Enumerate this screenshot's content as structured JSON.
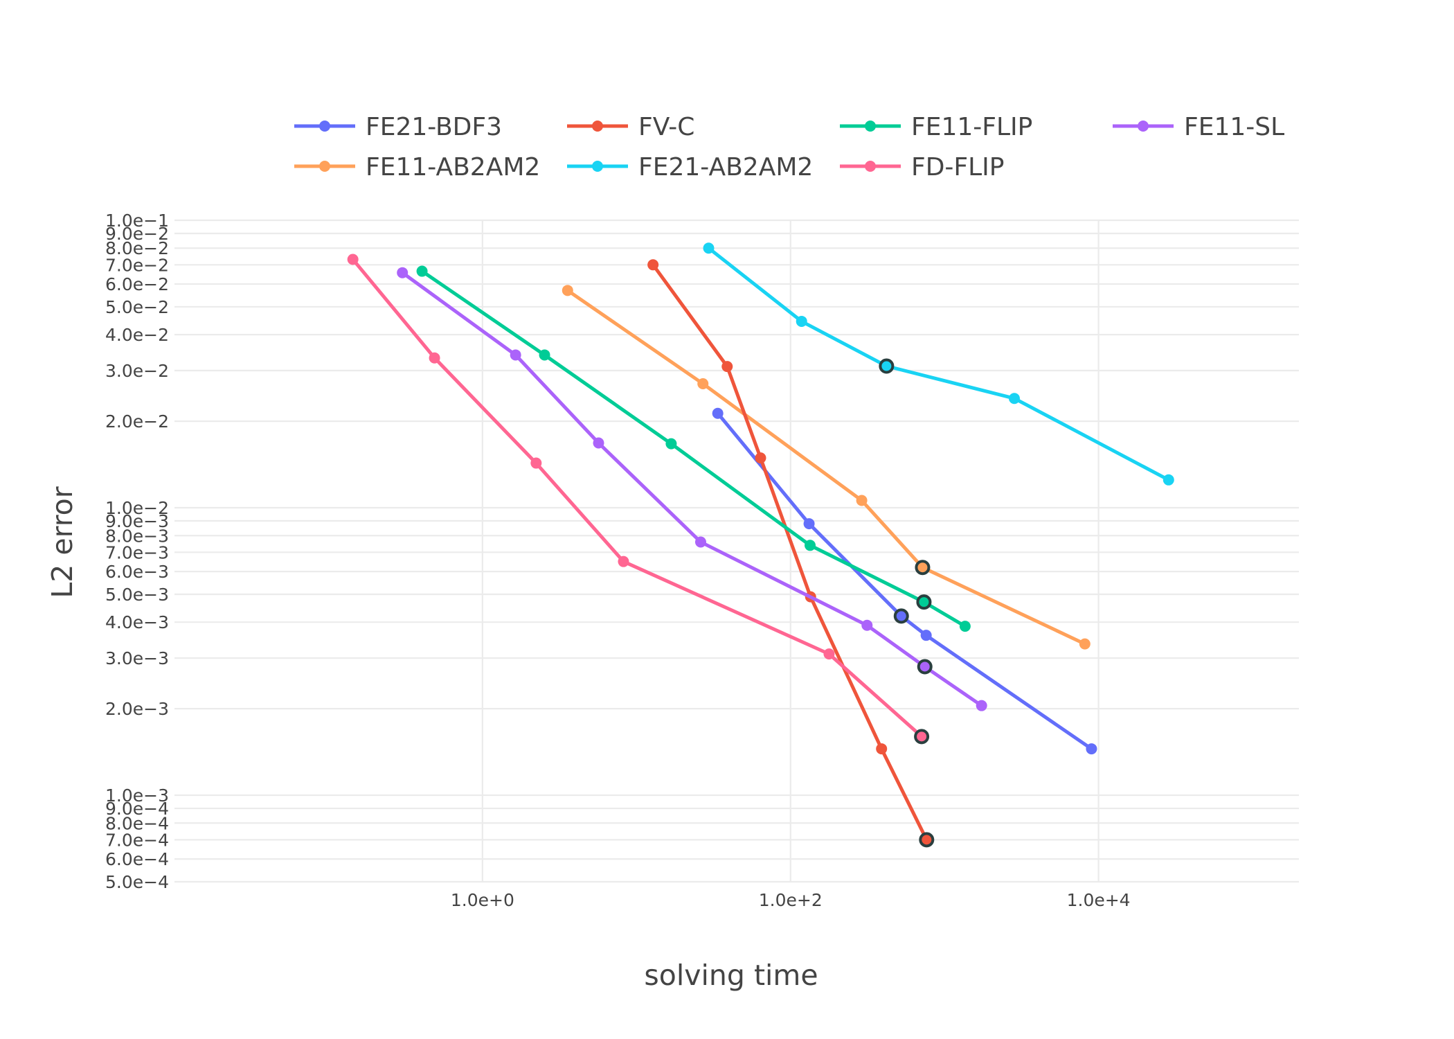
{
  "chart_data": {
    "type": "line",
    "xlabel": "solving time",
    "ylabel": "L2 error",
    "x_scale": "log",
    "y_scale": "log",
    "xlim": [
      0.01,
      200000
    ],
    "ylim": [
      0.0005,
      0.1
    ],
    "x_ticks": [
      {
        "value": 1,
        "label": "1.0e+0"
      },
      {
        "value": 100,
        "label": "1.0e+2"
      },
      {
        "value": 10000,
        "label": "1.0e+4"
      }
    ],
    "y_ticks": [
      {
        "value": 0.1,
        "label": "1.0e−1"
      },
      {
        "value": 0.09,
        "label": "9.0e−2"
      },
      {
        "value": 0.08,
        "label": "8.0e−2"
      },
      {
        "value": 0.07,
        "label": "7.0e−2"
      },
      {
        "value": 0.06,
        "label": "6.0e−2"
      },
      {
        "value": 0.05,
        "label": "5.0e−2"
      },
      {
        "value": 0.04,
        "label": "4.0e−2"
      },
      {
        "value": 0.03,
        "label": "3.0e−2"
      },
      {
        "value": 0.02,
        "label": "2.0e−2"
      },
      {
        "value": 0.01,
        "label": "1.0e−2"
      },
      {
        "value": 0.009,
        "label": "9.0e−3"
      },
      {
        "value": 0.008,
        "label": "8.0e−3"
      },
      {
        "value": 0.007,
        "label": "7.0e−3"
      },
      {
        "value": 0.006,
        "label": "6.0e−3"
      },
      {
        "value": 0.005,
        "label": "5.0e−3"
      },
      {
        "value": 0.004,
        "label": "4.0e−3"
      },
      {
        "value": 0.003,
        "label": "3.0e−3"
      },
      {
        "value": 0.002,
        "label": "2.0e−3"
      },
      {
        "value": 0.001,
        "label": "1.0e−3"
      },
      {
        "value": 0.0009,
        "label": "9.0e−4"
      },
      {
        "value": 0.0008,
        "label": "8.0e−4"
      },
      {
        "value": 0.0007,
        "label": "7.0e−4"
      },
      {
        "value": 0.0006,
        "label": "6.0e−4"
      },
      {
        "value": 0.0005,
        "label": "5.0e−4"
      }
    ],
    "grid": true,
    "legend_position": "top",
    "series": [
      {
        "name": "FE21-BDF3",
        "color": "#636efa",
        "x": [
          33.7,
          132,
          524,
          760,
          9000
        ],
        "y": [
          0.0213,
          0.0088,
          0.0042,
          0.0036,
          0.00145
        ],
        "highlight": [
          2
        ]
      },
      {
        "name": "FE11-AB2AM2",
        "color": "#ffa15a",
        "x": [
          3.57,
          27,
          290,
          720,
          8150
        ],
        "y": [
          0.057,
          0.027,
          0.0106,
          0.0062,
          0.00336
        ],
        "highlight": [
          3
        ]
      },
      {
        "name": "FV-C",
        "color": "#ef553b",
        "x": [
          12.8,
          38.8,
          63.9,
          135,
          390,
          765
        ],
        "y": [
          0.07,
          0.031,
          0.0149,
          0.0049,
          0.00145,
          0.0007
        ],
        "highlight": [
          5
        ]
      },
      {
        "name": "FE21-AB2AM2",
        "color": "#19d3f3",
        "x": [
          29.4,
          118,
          420,
          2840,
          28500
        ],
        "y": [
          0.08,
          0.0445,
          0.0311,
          0.024,
          0.0125
        ],
        "highlight": [
          2
        ]
      },
      {
        "name": "FE11-FLIP",
        "color": "#00cc96",
        "x": [
          0.405,
          2.53,
          16.8,
          134,
          735,
          1360
        ],
        "y": [
          0.0665,
          0.034,
          0.0167,
          0.0074,
          0.0047,
          0.00387
        ],
        "highlight": [
          4
        ]
      },
      {
        "name": "FD-FLIP",
        "color": "#ff6692",
        "x": [
          0.144,
          0.488,
          2.23,
          8.23,
          178,
          710
        ],
        "y": [
          0.0731,
          0.0332,
          0.0143,
          0.0065,
          0.0031,
          0.0016
        ],
        "highlight": [
          5
        ]
      },
      {
        "name": "FE11-SL",
        "color": "#ab63fa",
        "x": [
          0.302,
          1.64,
          5.67,
          26.1,
          314,
          745,
          1740
        ],
        "y": [
          0.0657,
          0.034,
          0.0168,
          0.0076,
          0.0039,
          0.0028,
          0.00205
        ],
        "highlight": [
          5
        ]
      }
    ]
  },
  "legend_layout": [
    [
      "FE21-BDF3",
      "FV-C",
      "FE11-FLIP",
      "FE11-SL"
    ],
    [
      "FE11-AB2AM2",
      "FE21-AB2AM2",
      "FD-FLIP"
    ]
  ]
}
